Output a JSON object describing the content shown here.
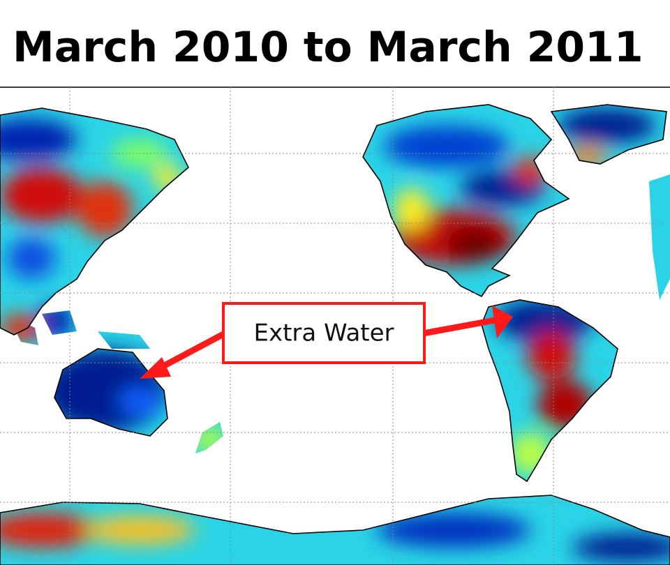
{
  "title": "March 2010 to March 2011",
  "callout": {
    "label": "Extra Water"
  }
}
